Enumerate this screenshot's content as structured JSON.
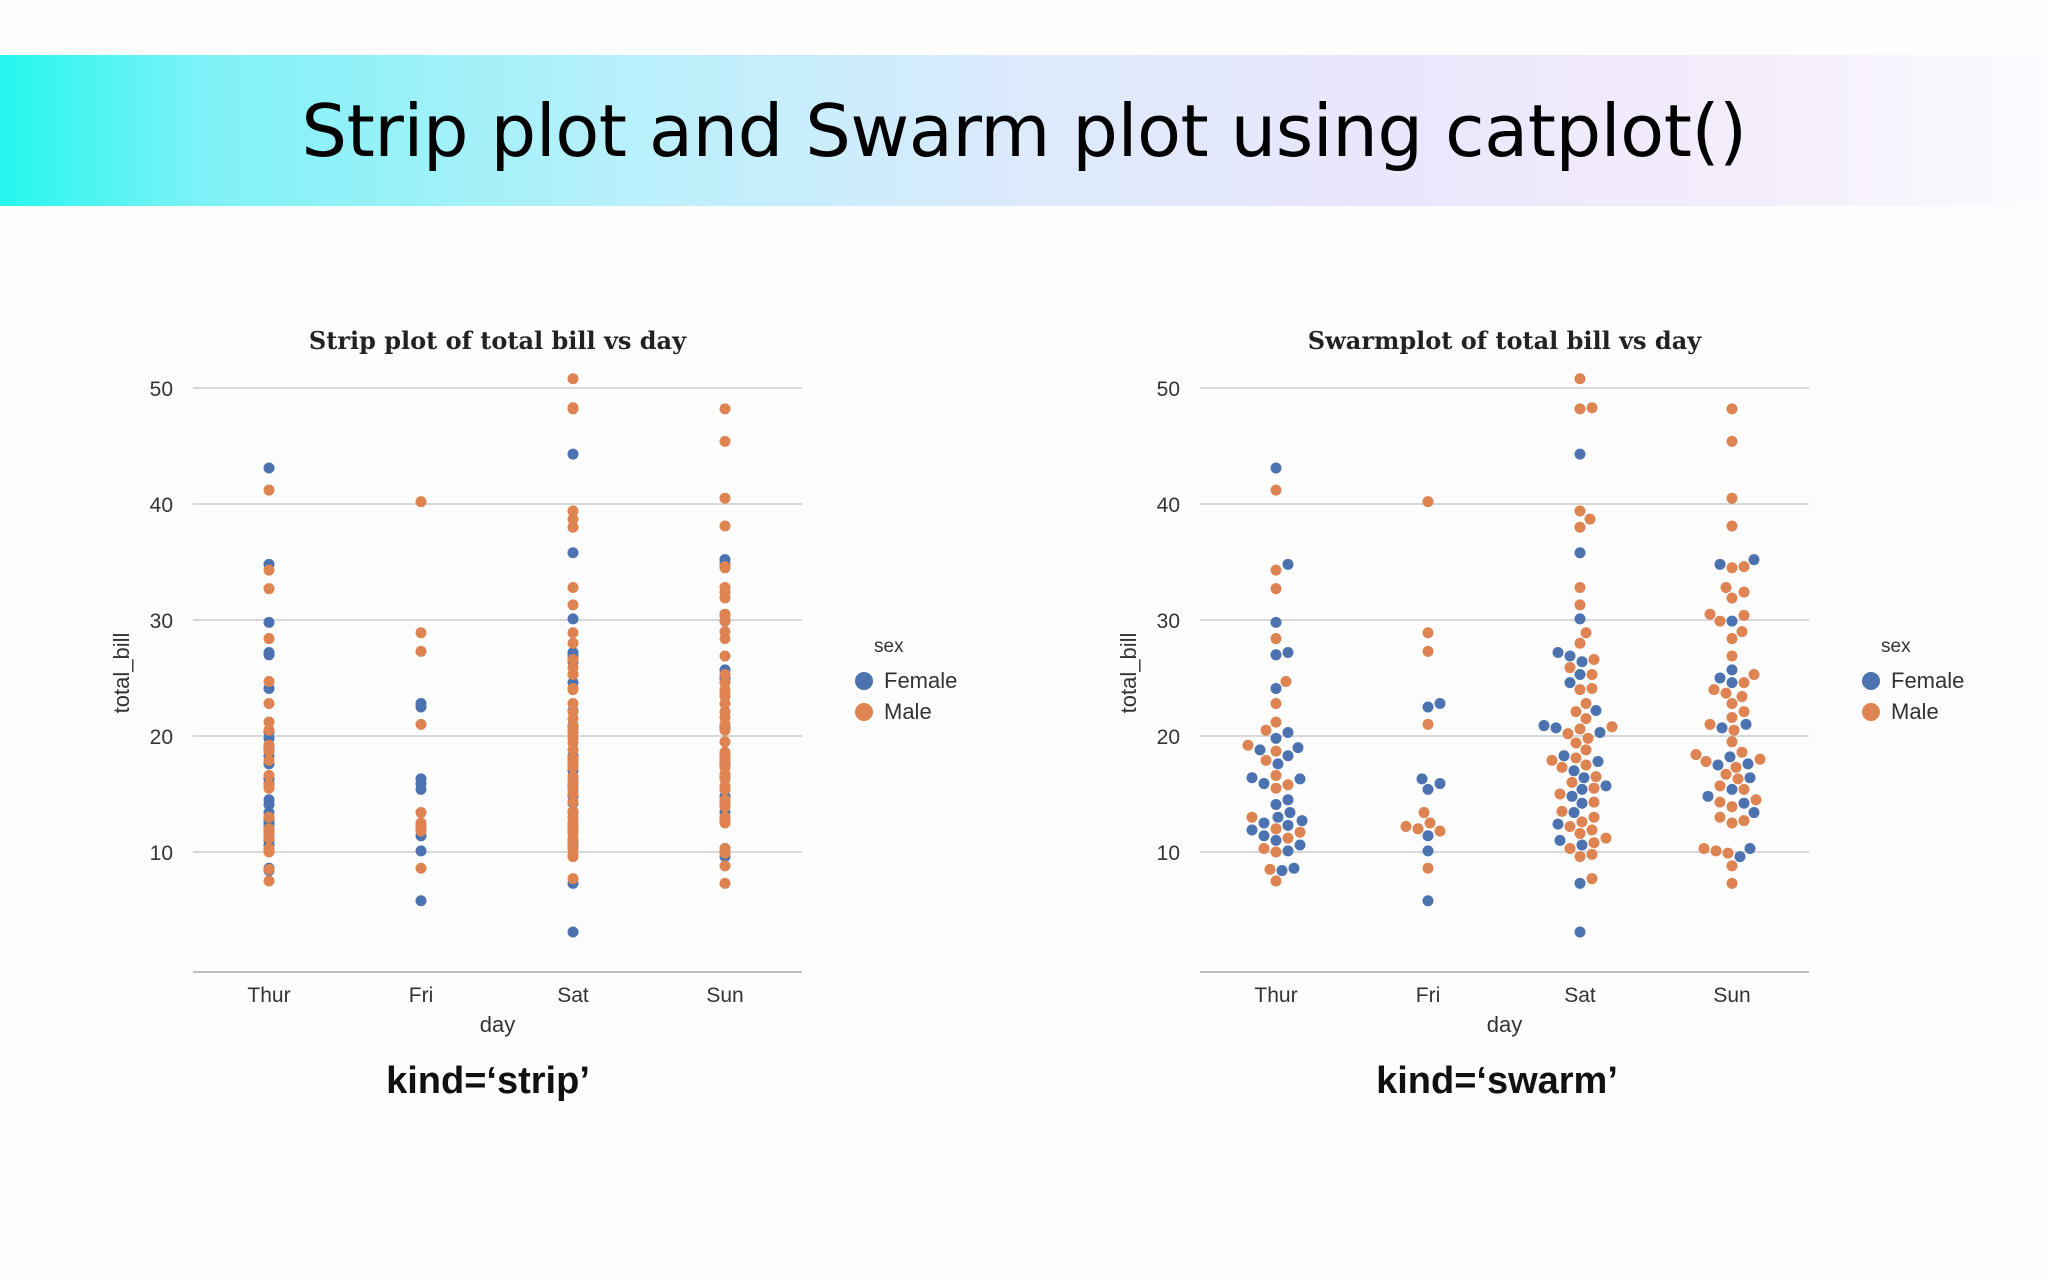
{
  "slide": {
    "title": "Strip plot and Swarm plot using catplot()",
    "captions": [
      "kind=‘strip’",
      "kind=‘swarm’"
    ]
  },
  "chart_data": [
    {
      "type": "scatter",
      "kind": "strip",
      "title": "Strip plot of total bill vs day",
      "xlabel": "day",
      "ylabel": "total_bill",
      "categories": [
        "Thur",
        "Fri",
        "Sat",
        "Sun"
      ],
      "yticks": [
        10,
        20,
        30,
        40,
        50
      ],
      "ylim": [
        0,
        52
      ],
      "grid": "horizontal",
      "legend": {
        "title": "sex",
        "entries": [
          "Female",
          "Male"
        ],
        "placement": "right"
      },
      "colors": {
        "Female": "#4c72b0",
        "Male": "#dd8452"
      },
      "series": [
        {
          "name": "Female",
          "values": {
            "Thur": [
              43.1,
              34.8,
              29.8,
              27.2,
              27.0,
              24.1,
              20.3,
              19.8,
              19.0,
              18.8,
              18.3,
              17.6,
              16.4,
              16.3,
              15.9,
              14.5,
              14.1,
              13.4,
              13.0,
              12.7,
              12.5,
              12.3,
              11.9,
              11.4,
              11.0,
              10.6,
              10.1,
              8.6,
              8.4
            ],
            "Fri": [
              22.8,
              22.5,
              16.3,
              15.9,
              15.4,
              11.4,
              10.1,
              5.8
            ],
            "Sat": [
              44.3,
              35.8,
              30.1,
              27.2,
              26.9,
              26.4,
              25.3,
              24.6,
              22.2,
              20.9,
              20.7,
              20.3,
              18.3,
              17.8,
              17.0,
              16.4,
              15.7,
              15.4,
              14.8,
              14.2,
              13.4,
              12.4,
              11.0,
              10.6,
              7.3,
              3.1
            ],
            "Sun": [
              35.2,
              34.8,
              29.9,
              25.7,
              25.0,
              24.6,
              21.0,
              20.7,
              18.2,
              17.6,
              17.5,
              16.4,
              15.4,
              14.8,
              14.2,
              13.4,
              10.3,
              9.6
            ]
          }
        },
        {
          "name": "Male",
          "values": {
            "Thur": [
              41.2,
              34.3,
              32.7,
              28.4,
              24.7,
              22.8,
              21.2,
              20.5,
              19.2,
              18.7,
              17.9,
              16.6,
              15.8,
              15.5,
              13.0,
              12.0,
              11.7,
              11.2,
              10.3,
              10.0,
              8.5,
              7.5
            ],
            "Fri": [
              40.2,
              28.9,
              27.3,
              21.0,
              13.4,
              12.5,
              12.2,
              12.0,
              11.8,
              8.6
            ],
            "Sat": [
              50.8,
              48.3,
              48.2,
              39.4,
              38.7,
              38.0,
              32.8,
              31.3,
              28.9,
              28.0,
              26.6,
              25.9,
              25.3,
              24.1,
              24.0,
              22.8,
              22.1,
              21.5,
              20.8,
              20.6,
              20.2,
              19.8,
              19.4,
              18.8,
              18.1,
              17.9,
              17.5,
              17.3,
              16.5,
              16.0,
              15.5,
              15.0,
              14.3,
              13.5,
              13.0,
              12.6,
              12.2,
              11.9,
              11.6,
              11.2,
              10.8,
              10.3,
              9.8,
              9.6,
              7.7
            ],
            "Sun": [
              48.2,
              45.4,
              40.5,
              38.1,
              34.6,
              34.5,
              32.8,
              32.4,
              31.9,
              30.5,
              30.4,
              29.9,
              29.0,
              28.4,
              26.9,
              25.3,
              24.6,
              24.0,
              23.7,
              23.4,
              22.8,
              22.1,
              21.6,
              21.0,
              20.5,
              19.5,
              18.6,
              18.4,
              18.0,
              17.8,
              17.3,
              16.7,
              16.3,
              15.7,
              15.4,
              14.5,
              14.3,
              13.9,
              13.0,
              12.7,
              12.5,
              10.3,
              10.1,
              9.9,
              8.8,
              7.3
            ]
          }
        }
      ]
    },
    {
      "type": "scatter",
      "kind": "swarm",
      "title": "Swarmplot of total bill vs day",
      "xlabel": "day",
      "ylabel": "total_bill",
      "categories": [
        "Thur",
        "Fri",
        "Sat",
        "Sun"
      ],
      "yticks": [
        10,
        20,
        30,
        40,
        50
      ],
      "ylim": [
        0,
        52
      ],
      "grid": "horizontal",
      "legend": {
        "title": "sex",
        "entries": [
          "Female",
          "Male"
        ],
        "placement": "right"
      },
      "colors": {
        "Female": "#4c72b0",
        "Male": "#dd8452"
      },
      "same_data_as": 0
    }
  ]
}
